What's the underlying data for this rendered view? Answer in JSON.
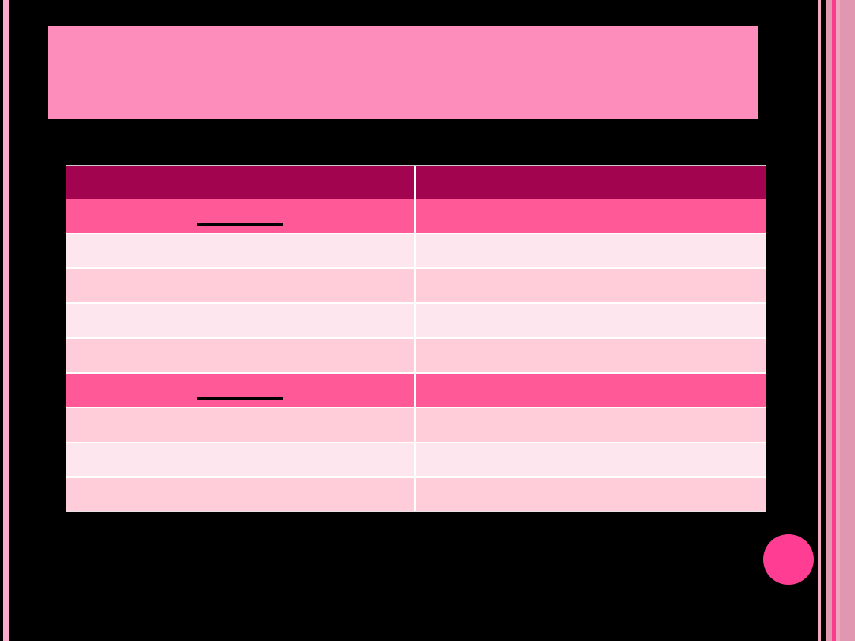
{
  "slide": {
    "background_color": "#000000",
    "title_bar": {
      "text": "",
      "color": "#FD8EBC"
    },
    "decoration": {
      "left_stripe_color": "#F9ABCB",
      "right_stripes": [
        {
          "name": "outer-light-pink",
          "color": "#F2A7C2"
        },
        {
          "name": "dusty-rose-thin",
          "color": "#E197AF"
        },
        {
          "name": "magenta-accent",
          "color": "#F93C8C"
        },
        {
          "name": "light-pink-thin",
          "color": "#F0A5BE"
        },
        {
          "name": "dusty-rose-wide",
          "color": "#E197AF"
        }
      ],
      "accent_circle_color": "#FF3D92"
    },
    "table": {
      "header_color": "#A20450",
      "grid_line_color": "#FFFFFF",
      "underline_color": "#000000",
      "row_colors": {
        "highlight": "#FF5997",
        "light": "#FDE6EE",
        "medium": "#FFCDDA"
      },
      "columns": [
        {
          "header": ""
        },
        {
          "header": ""
        }
      ],
      "rows": [
        {
          "variant": "highlight",
          "underline": true,
          "cells": [
            "",
            ""
          ]
        },
        {
          "variant": "light",
          "underline": false,
          "cells": [
            "",
            ""
          ]
        },
        {
          "variant": "medium",
          "underline": false,
          "cells": [
            "",
            ""
          ]
        },
        {
          "variant": "light",
          "underline": false,
          "cells": [
            "",
            ""
          ]
        },
        {
          "variant": "medium",
          "underline": false,
          "cells": [
            "",
            ""
          ]
        },
        {
          "variant": "highlight",
          "underline": true,
          "cells": [
            "",
            ""
          ]
        },
        {
          "variant": "medium",
          "underline": false,
          "cells": [
            "",
            ""
          ]
        },
        {
          "variant": "light",
          "underline": false,
          "cells": [
            "",
            ""
          ]
        },
        {
          "variant": "medium",
          "underline": false,
          "cells": [
            "",
            ""
          ]
        }
      ]
    }
  }
}
